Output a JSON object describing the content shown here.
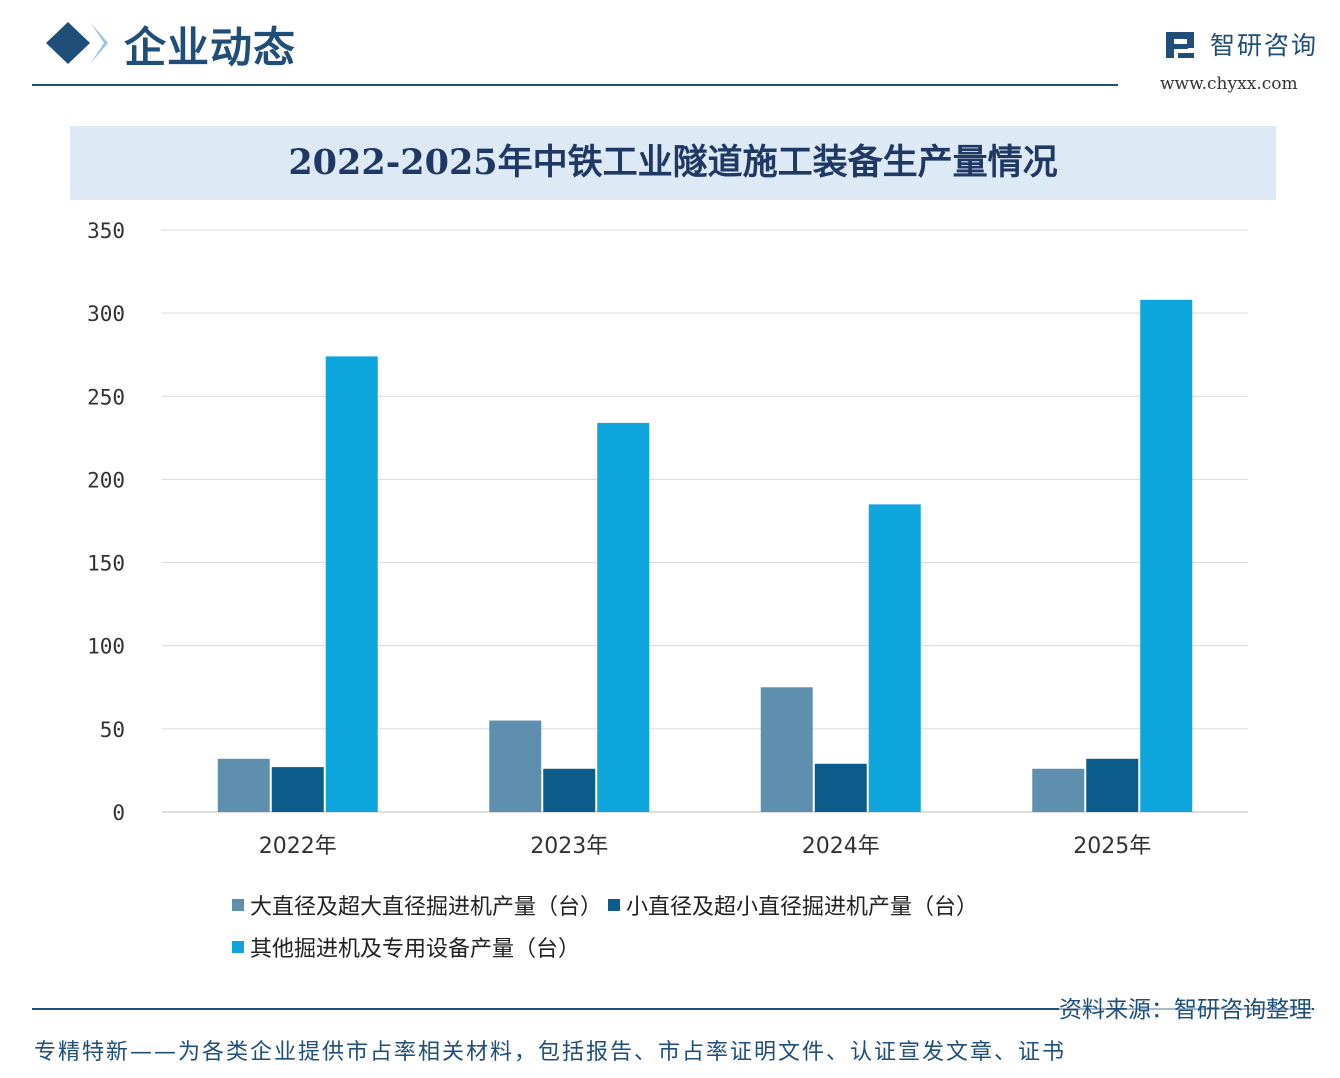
{
  "header": {
    "section_title": "企业动态",
    "logo_text": "智研咨询",
    "logo_url": "www.chyxx.com"
  },
  "colors": {
    "series_1": "#5f8fae",
    "series_2": "#0b5b8b",
    "series_3": "#0ea5dc",
    "brand": "#1f4e79",
    "title_band": "#ddeaf6",
    "gridline": "#d9d9d9"
  },
  "chart_data": {
    "type": "bar",
    "title": "2022-2025年中铁工业隧道施工装备生产量情况",
    "categories": [
      "2022年",
      "2023年",
      "2024年",
      "2025年"
    ],
    "series": [
      {
        "name": "大直径及超大直径掘进机产量（台）",
        "values": [
          32,
          55,
          75,
          26
        ]
      },
      {
        "name": "小直径及超小直径掘进机产量（台）",
        "values": [
          27,
          26,
          29,
          32
        ]
      },
      {
        "name": "其他掘进机及专用设备产量（台）",
        "values": [
          274,
          234,
          185,
          308
        ]
      }
    ],
    "ylim": [
      0,
      350
    ],
    "yticks": [
      0,
      50,
      100,
      150,
      200,
      250,
      300,
      350
    ],
    "xlabel": "",
    "ylabel": "",
    "grid": true,
    "legend_position": "bottom"
  },
  "footer": {
    "source": "资料来源：智研咨询整理",
    "note": "专精特新——为各类企业提供市占率相关材料，包括报告、市占率证明文件、认证宣发文章、证书"
  }
}
